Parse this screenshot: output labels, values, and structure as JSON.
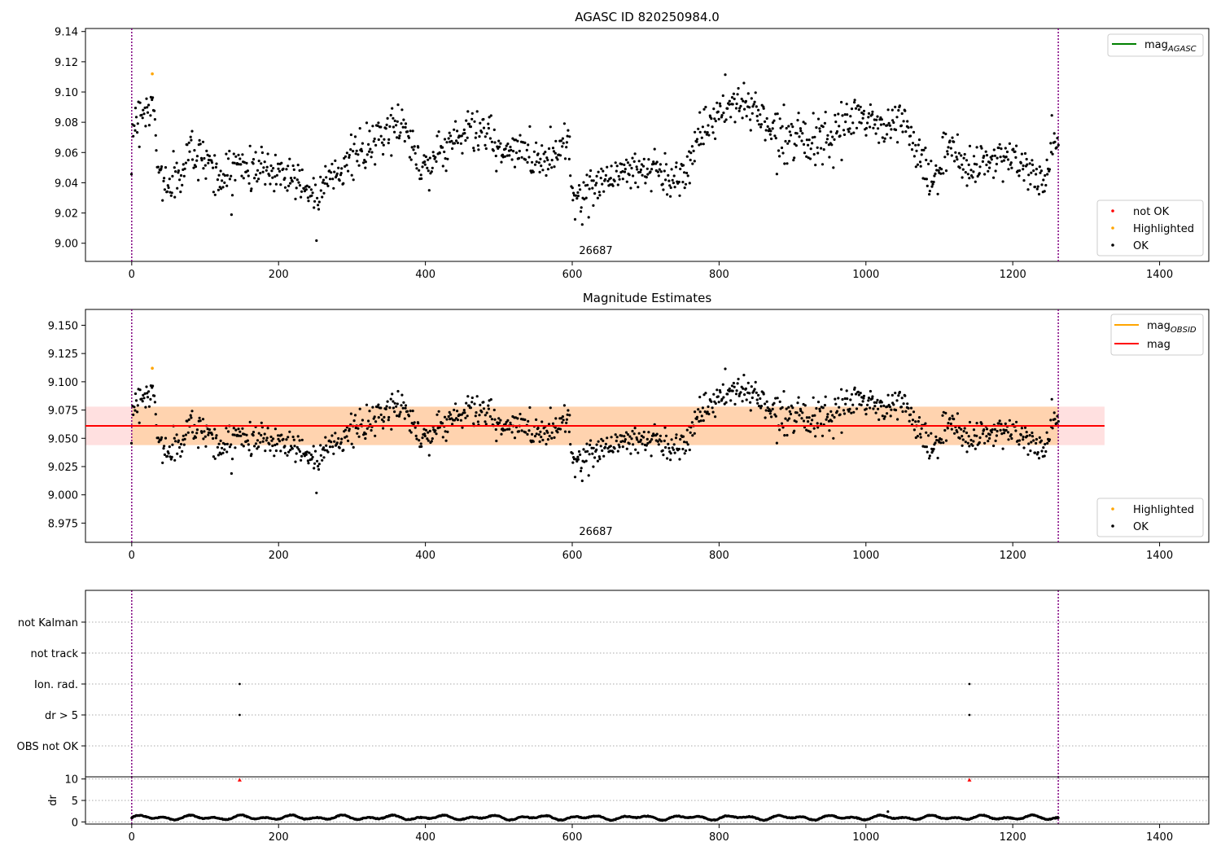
{
  "chart_data": [
    {
      "type": "scatter",
      "title": "AGASC ID 820250984.0",
      "annotation": "26687",
      "xlim": [
        -63,
        1467
      ],
      "ylim": [
        8.988,
        9.142
      ],
      "xticks": [
        0,
        200,
        400,
        600,
        800,
        1000,
        1200,
        1400
      ],
      "yticks": [
        9.0,
        9.02,
        9.04,
        9.06,
        9.08,
        9.1,
        9.12,
        9.14
      ],
      "ytick_labels": [
        "9.00",
        "9.02",
        "9.04",
        "9.06",
        "9.08",
        "9.10",
        "9.12",
        "9.14"
      ],
      "vlines": [
        0,
        1262
      ],
      "vline_color": "#800080",
      "series": [
        {
          "name": "not OK",
          "color": "#ff0000",
          "values": []
        },
        {
          "name": "Highlighted",
          "color": "#ffa500",
          "values": [
            [
              28,
              9.112
            ]
          ]
        },
        {
          "name": "OK",
          "color": "#000000",
          "model": {
            "x_range": [
              0,
              1262
            ],
            "count": 1200,
            "knots": [
              [
                0,
                9.075
              ],
              [
                10,
                9.085
              ],
              [
                20,
                9.09
              ],
              [
                30,
                9.09
              ],
              [
                35,
                9.05
              ],
              [
                45,
                9.04
              ],
              [
                60,
                9.04
              ],
              [
                70,
                9.048
              ],
              [
                80,
                9.065
              ],
              [
                90,
                9.055
              ],
              [
                100,
                9.06
              ],
              [
                115,
                9.045
              ],
              [
                130,
                9.042
              ],
              [
                145,
                9.055
              ],
              [
                160,
                9.048
              ],
              [
                180,
                9.05
              ],
              [
                200,
                9.047
              ],
              [
                220,
                9.045
              ],
              [
                240,
                9.035
              ],
              [
                255,
                9.03
              ],
              [
                265,
                9.05
              ],
              [
                280,
                9.045
              ],
              [
                300,
                9.058
              ],
              [
                320,
                9.06
              ],
              [
                340,
                9.07
              ],
              [
                360,
                9.08
              ],
              [
                375,
                9.075
              ],
              [
                385,
                9.06
              ],
              [
                400,
                9.05
              ],
              [
                420,
                9.06
              ],
              [
                440,
                9.07
              ],
              [
                460,
                9.075
              ],
              [
                480,
                9.075
              ],
              [
                500,
                9.06
              ],
              [
                520,
                9.06
              ],
              [
                540,
                9.06
              ],
              [
                560,
                9.055
              ],
              [
                580,
                9.06
              ],
              [
                595,
                9.075
              ],
              [
                600,
                9.03
              ],
              [
                620,
                9.03
              ],
              [
                640,
                9.045
              ],
              [
                660,
                9.045
              ],
              [
                680,
                9.048
              ],
              [
                700,
                9.05
              ],
              [
                720,
                9.048
              ],
              [
                740,
                9.04
              ],
              [
                755,
                9.05
              ],
              [
                770,
                9.07
              ],
              [
                790,
                9.08
              ],
              [
                810,
                9.09
              ],
              [
                830,
                9.092
              ],
              [
                850,
                9.09
              ],
              [
                870,
                9.075
              ],
              [
                890,
                9.07
              ],
              [
                910,
                9.075
              ],
              [
                930,
                9.065
              ],
              [
                950,
                9.065
              ],
              [
                970,
                9.078
              ],
              [
                990,
                9.085
              ],
              [
                1010,
                9.08
              ],
              [
                1030,
                9.075
              ],
              [
                1050,
                9.085
              ],
              [
                1060,
                9.07
              ],
              [
                1075,
                9.055
              ],
              [
                1090,
                9.04
              ],
              [
                1110,
                9.06
              ],
              [
                1130,
                9.055
              ],
              [
                1150,
                9.05
              ],
              [
                1170,
                9.055
              ],
              [
                1190,
                9.06
              ],
              [
                1210,
                9.05
              ],
              [
                1230,
                9.045
              ],
              [
                1245,
                9.04
              ],
              [
                1255,
                9.065
              ],
              [
                1262,
                9.065
              ]
            ],
            "noise": 0.007
          }
        }
      ],
      "legend_lines": [
        {
          "label": "mag",
          "sub": "AGASC",
          "color": "#008000"
        }
      ],
      "legend_points": [
        "not OK",
        "Highlighted",
        "OK"
      ],
      "legend_placement": [
        "upper right",
        "lower right"
      ]
    },
    {
      "type": "scatter",
      "title": "Magnitude Estimates",
      "annotation": "26687",
      "xlim": [
        -63,
        1467
      ],
      "ylim": [
        8.958,
        9.164
      ],
      "xticks": [
        0,
        200,
        400,
        600,
        800,
        1000,
        1200,
        1400
      ],
      "yticks": [
        8.975,
        9.0,
        9.025,
        9.05,
        9.075,
        9.1,
        9.125,
        9.15
      ],
      "ytick_labels": [
        "8.975",
        "9.000",
        "9.025",
        "9.050",
        "9.075",
        "9.100",
        "9.125",
        "9.150"
      ],
      "vlines": [
        0,
        1262
      ],
      "vline_color": "#800080",
      "mag": 9.061,
      "mag_band": [
        9.044,
        9.078
      ],
      "mag_band_x": [
        -63,
        1325
      ],
      "mag_obsid": 9.061,
      "mag_obsid_band": [
        9.044,
        9.078
      ],
      "mag_obsid_x": [
        0,
        1262
      ],
      "series": [
        {
          "name": "Highlighted",
          "color": "#ffa500",
          "values": [
            [
              28,
              9.112
            ]
          ]
        },
        {
          "name": "OK",
          "color": "#000000",
          "same_as_panel": 0
        }
      ],
      "legend_lines": [
        {
          "label": "mag",
          "sub": "OBSID",
          "color": "#ffa500"
        },
        {
          "label": "mag",
          "sub": "",
          "color": "#ff0000"
        }
      ],
      "legend_points": [
        "Highlighted",
        "OK"
      ],
      "legend_placement": [
        "upper right",
        "lower right"
      ]
    },
    {
      "type": "scatter",
      "xlim": [
        -63,
        1467
      ],
      "categories": [
        "not Kalman",
        "not track",
        "Ion. rad.",
        "dr > 5",
        "OBS not OK"
      ],
      "flags": [
        {
          "category": "Ion. rad.",
          "x": [
            147,
            1141
          ]
        },
        {
          "category": "dr > 5",
          "x": [
            147,
            1141
          ]
        }
      ],
      "vlines": [
        0,
        1262
      ],
      "vline_color": "#800080"
    },
    {
      "type": "scatter",
      "ylabel": "dr",
      "xlim": [
        -63,
        1467
      ],
      "ylim": [
        -0.5,
        10.5
      ],
      "yticks": [
        0,
        5,
        10
      ],
      "xticks": [
        0,
        200,
        400,
        600,
        800,
        1000,
        1200,
        1400
      ],
      "markers_above": [
        [
          147,
          9.8
        ],
        [
          1141,
          9.8
        ]
      ],
      "vlines": [
        0,
        1262
      ],
      "vline_color": "#800080",
      "series": [
        {
          "name": "dr",
          "color": "#000000",
          "model": {
            "x_range": [
              0,
              1262
            ],
            "count": 1200,
            "base": 1.0,
            "amp": 0.6
          }
        }
      ]
    }
  ]
}
